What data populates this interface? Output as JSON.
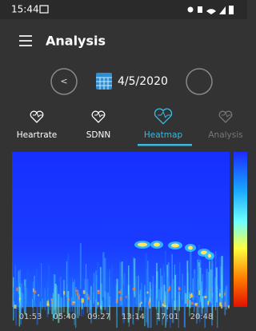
{
  "status_bar": {
    "time": "15:44"
  },
  "app_bar": {
    "title": "Analysis"
  },
  "date_nav": {
    "prev": "<",
    "date": "4/5/2020"
  },
  "tabs": [
    {
      "label": "Heartrate"
    },
    {
      "label": "SDNN"
    },
    {
      "label": "Heatmap"
    },
    {
      "label": "Analysis"
    }
  ],
  "heatmap": {
    "x_labels": [
      "01:53",
      "05:40",
      "09:27",
      "13:14",
      "17:01",
      "20:48"
    ]
  }
}
